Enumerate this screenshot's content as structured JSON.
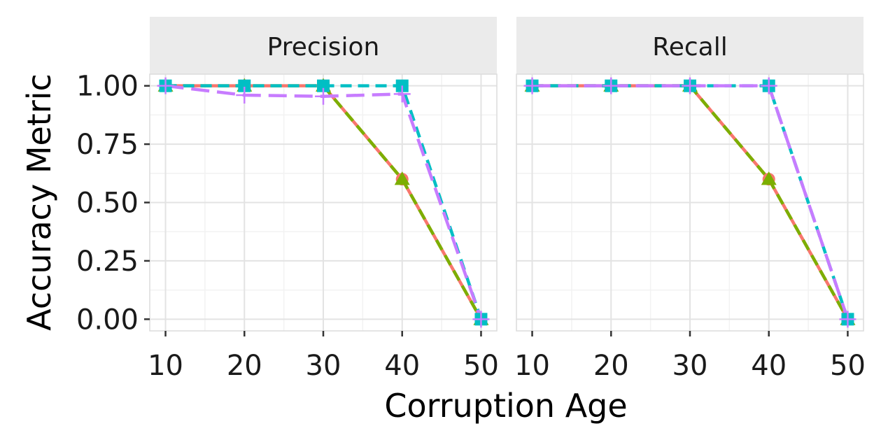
{
  "chart_data": {
    "type": "line",
    "xlabel": "Corruption Age",
    "ylabel": "Accuracy Metric",
    "x": [
      10,
      20,
      30,
      40,
      50
    ],
    "xlim": [
      8,
      52
    ],
    "ylim": [
      -0.05,
      1.05
    ],
    "x_ticks": [
      "10",
      "20",
      "30",
      "40",
      "50"
    ],
    "y_ticks": [
      "0.00",
      "0.25",
      "0.50",
      "0.75",
      "1.00"
    ],
    "y_tick_values": [
      0,
      0.25,
      0.5,
      0.75,
      1.0
    ],
    "grid": true,
    "legend": "none",
    "panels": [
      {
        "title": "Precision",
        "series": [
          {
            "color": "#F8766D",
            "dash": "solid",
            "marker": "circle",
            "values": [
              1.0,
              1.0,
              1.0,
              0.6,
              0.0
            ]
          },
          {
            "color": "#7CAE00",
            "dash": "dashed",
            "marker": "triangle",
            "values": [
              1.0,
              1.0,
              1.0,
              0.6,
              0.0
            ]
          },
          {
            "color": "#00BFC4",
            "dash": "dashed",
            "marker": "square",
            "values": [
              1.0,
              1.0,
              1.0,
              1.0,
              0.0
            ]
          },
          {
            "color": "#C77CFF",
            "dash": "longdash",
            "marker": "plus",
            "values": [
              1.0,
              0.96,
              0.955,
              0.965,
              0.0
            ]
          }
        ]
      },
      {
        "title": "Recall",
        "series": [
          {
            "color": "#F8766D",
            "dash": "solid",
            "marker": "circle",
            "values": [
              1.0,
              1.0,
              1.0,
              0.6,
              0.0
            ]
          },
          {
            "color": "#7CAE00",
            "dash": "dashed",
            "marker": "triangle",
            "values": [
              1.0,
              1.0,
              1.0,
              0.6,
              0.0
            ]
          },
          {
            "color": "#00BFC4",
            "dash": "dashed",
            "marker": "square",
            "values": [
              1.0,
              1.0,
              1.0,
              1.0,
              0.0
            ]
          },
          {
            "color": "#C77CFF",
            "dash": "longdash",
            "marker": "plus",
            "values": [
              1.0,
              1.0,
              1.0,
              1.0,
              0.0
            ]
          }
        ]
      }
    ]
  }
}
